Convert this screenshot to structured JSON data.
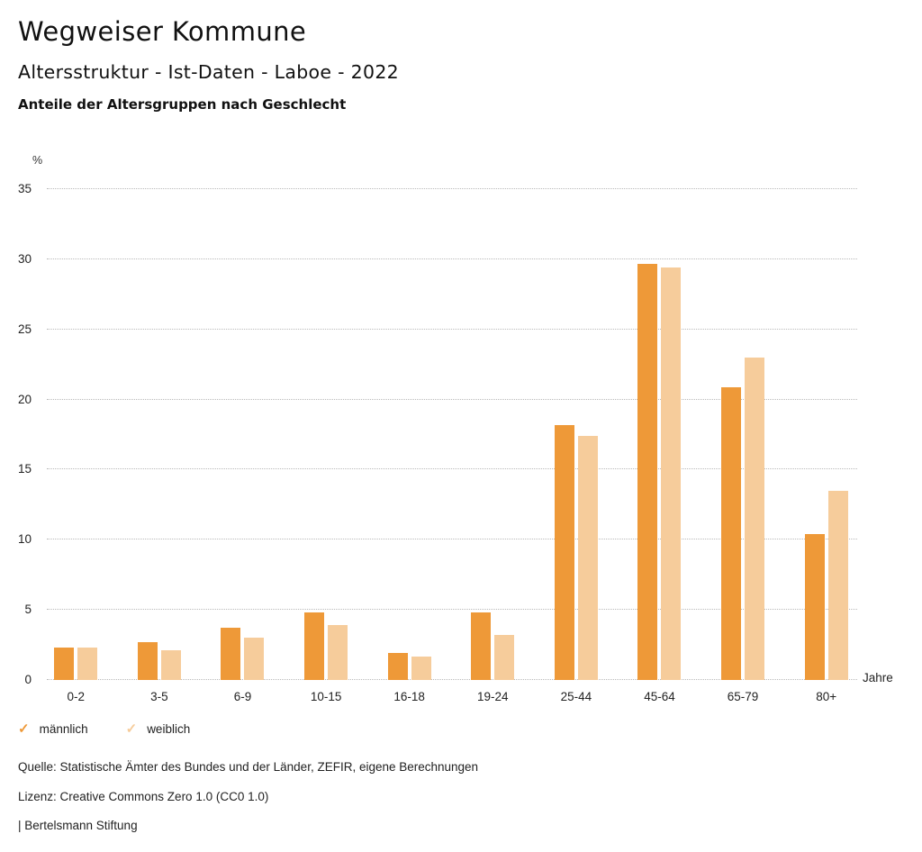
{
  "header": {
    "title": "Wegweiser Kommune",
    "subtitle": "Altersstruktur - Ist-Daten - Laboe - 2022",
    "description": "Anteile der Altersgruppen nach Geschlecht"
  },
  "chart_data": {
    "type": "bar",
    "title": "Anteile der Altersgruppen nach Geschlecht",
    "categories": [
      "0-2",
      "3-5",
      "6-9",
      "10-15",
      "16-18",
      "19-24",
      "25-44",
      "45-64",
      "65-79",
      "80+"
    ],
    "series": [
      {
        "name": "männlich",
        "color": "#EE9938",
        "values": [
          2.3,
          2.7,
          3.7,
          4.8,
          1.9,
          4.8,
          18.2,
          29.7,
          20.9,
          10.4
        ]
      },
      {
        "name": "weiblich",
        "color": "#F6CC9B",
        "values": [
          2.3,
          2.1,
          3.0,
          3.9,
          1.7,
          3.2,
          17.4,
          29.4,
          23.0,
          13.5
        ]
      }
    ],
    "y_unit": "%",
    "x_unit": "Jahre",
    "ylim": [
      0,
      35
    ],
    "ytick_step": 5,
    "grid": "horizontal-dotted",
    "legend_position": "bottom-left"
  },
  "legend": {
    "items": [
      {
        "label": "männlich",
        "color": "#EE9938",
        "checked": true
      },
      {
        "label": "weiblich",
        "color": "#F6CC9B",
        "checked": true
      }
    ],
    "check_glyph": "✓"
  },
  "footer": {
    "source": "Quelle: Statistische Ämter des Bundes und der Länder, ZEFIR, eigene Berechnungen",
    "license": "Lizenz: Creative Commons Zero 1.0 (CC0 1.0)",
    "attribution": "| Bertelsmann Stiftung"
  }
}
